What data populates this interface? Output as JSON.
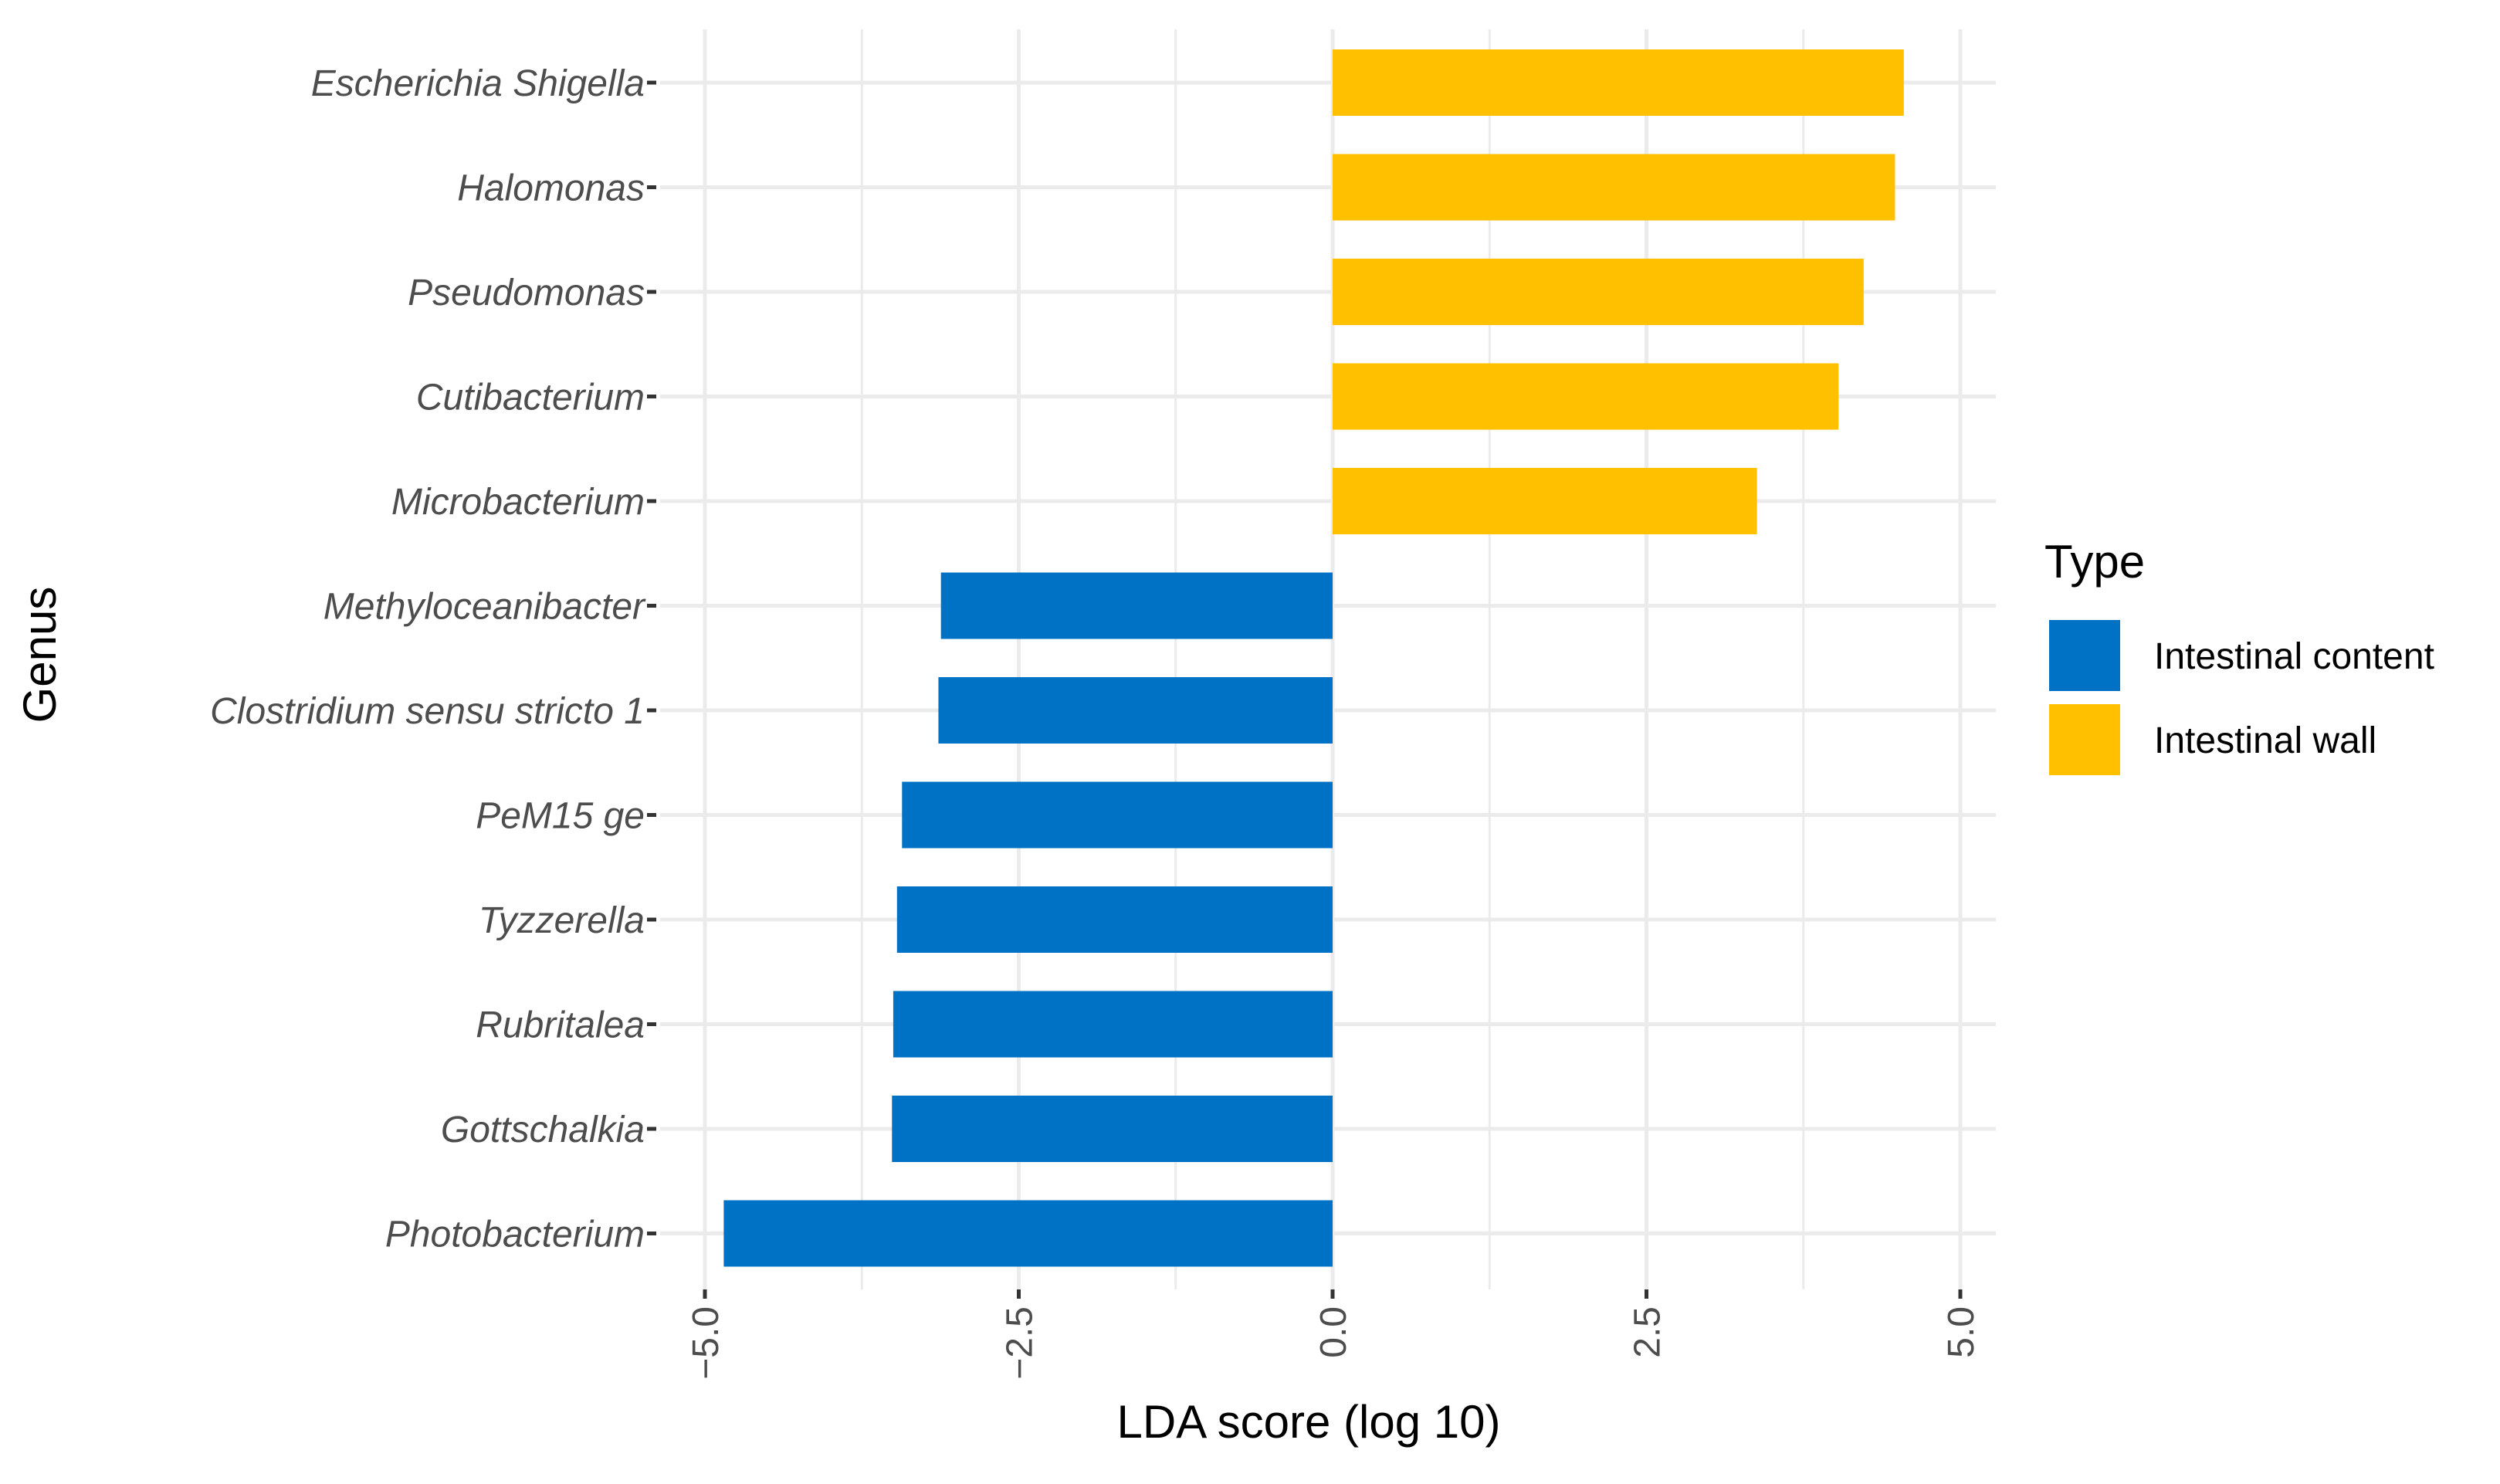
{
  "chart_data": {
    "type": "bar",
    "orientation": "horizontal",
    "categories": [
      "Escherichia Shigella",
      "Halomonas",
      "Pseudomonas",
      "Cutibacterium",
      "Microbacterium",
      "Methyloceanibacter",
      "Clostridium sensu stricto 1",
      "PeM15 ge",
      "Tyzzerella",
      "Rubritalea",
      "Gottschalkia",
      "Photobacterium"
    ],
    "values": [
      4.55,
      4.48,
      4.23,
      4.03,
      3.38,
      -3.12,
      -3.14,
      -3.43,
      -3.47,
      -3.5,
      -3.51,
      -4.85
    ],
    "groups": [
      "Intestinal wall",
      "Intestinal wall",
      "Intestinal wall",
      "Intestinal wall",
      "Intestinal wall",
      "Intestinal content",
      "Intestinal content",
      "Intestinal content",
      "Intestinal content",
      "Intestinal content",
      "Intestinal content",
      "Intestinal content"
    ],
    "xlabel": "LDA score (log 10)",
    "ylabel": "Genus",
    "xlim": [
      -5.0,
      5.0
    ],
    "xticks": [
      -5.0,
      -2.5,
      0.0,
      2.5,
      5.0
    ],
    "xtick_labels": [
      "−5.0",
      "−2.5",
      "0.0",
      "2.5",
      "5.0"
    ],
    "grid": true,
    "legend": {
      "title": "Type",
      "position": "right",
      "entries": [
        {
          "label": "Intestinal content",
          "color": "#0072C6"
        },
        {
          "label": "Intestinal wall",
          "color": "#FFC000"
        }
      ]
    }
  }
}
